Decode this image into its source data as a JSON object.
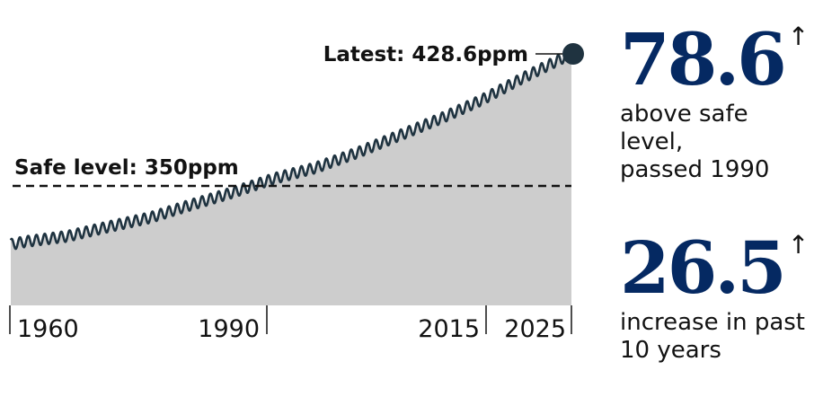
{
  "chart_data": {
    "type": "area",
    "x_start": 1958.2,
    "x_end": 2025.9,
    "xlim": [
      1958.2,
      2025.9
    ],
    "ylim": [
      0,
      440
    ],
    "base_trend": [
      [
        1958,
        315.0
      ],
      [
        1960,
        316.9
      ],
      [
        1965,
        320.0
      ],
      [
        1970,
        325.7
      ],
      [
        1975,
        331.1
      ],
      [
        1980,
        338.8
      ],
      [
        1985,
        346.1
      ],
      [
        1990,
        354.4
      ],
      [
        1995,
        360.8
      ],
      [
        2000,
        369.7
      ],
      [
        2005,
        379.8
      ],
      [
        2010,
        389.9
      ],
      [
        2015,
        401.0
      ],
      [
        2020,
        414.2
      ],
      [
        2025,
        426.5
      ]
    ],
    "seasonal_amplitude": 3.2,
    "xticks": [
      {
        "value": 1960,
        "label": "1960"
      },
      {
        "value": 1990,
        "label": "1990"
      },
      {
        "value": 2015,
        "label": "2015"
      },
      {
        "value": 2025,
        "label": "2025"
      }
    ],
    "reference_line": {
      "value": 350,
      "label": "Safe level: 350ppm"
    },
    "latest": {
      "x": 2025.9,
      "value": 428.6,
      "label": "Latest: 428.6ppm"
    },
    "colors": {
      "fill": "#cdcdcd",
      "line": "#1f3340",
      "dot": "#1f3340",
      "reference": "#121212"
    }
  },
  "stats": [
    {
      "value": "78.6",
      "arrow": "↑",
      "caption": "above safe\nlevel,\npassed 1990"
    },
    {
      "value": "26.5",
      "arrow": "↑",
      "caption": "increase in past\n10 years"
    }
  ]
}
